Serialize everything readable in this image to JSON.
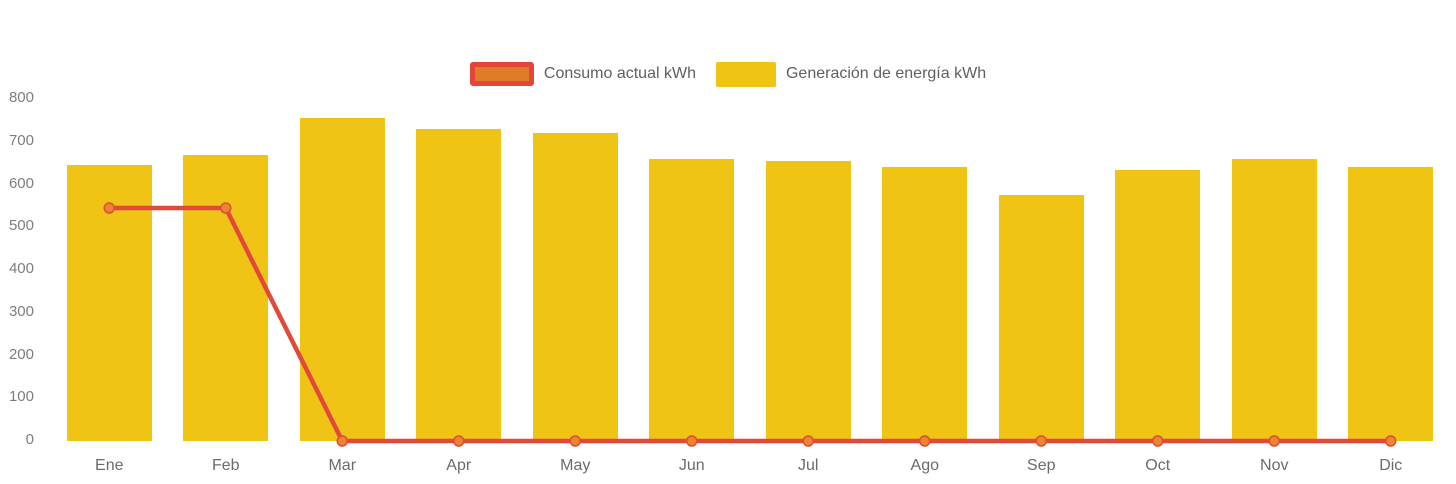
{
  "page": {
    "background": "#ffffff"
  },
  "legend": {
    "position": "top-center",
    "items": [
      {
        "name": "Consumo actual kWh",
        "swatch": "line-swatch",
        "fill": "#e07c28",
        "border": "#e24639"
      },
      {
        "name": "Generación de energía kWh",
        "swatch": "bar-swatch",
        "fill": "#f0c414"
      }
    ]
  },
  "chart_data": {
    "type": "bar+line",
    "title": "",
    "xlabel": "",
    "ylabel": "",
    "categories": [
      "Ene",
      "Feb",
      "Mar",
      "Apr",
      "May",
      "Jun",
      "Jul",
      "Ago",
      "Sep",
      "Oct",
      "Nov",
      "Dic"
    ],
    "series": [
      {
        "name": "Consumo actual kWh",
        "type": "line",
        "line_color": "#e2493b",
        "marker_color": "#e8872e",
        "values": [
          545,
          545,
          0,
          0,
          0,
          0,
          0,
          0,
          0,
          0,
          0,
          0
        ]
      },
      {
        "name": "Generación de energía kWh",
        "type": "bar",
        "color": "#f0c414",
        "values": [
          645,
          670,
          755,
          730,
          720,
          660,
          655,
          640,
          575,
          635,
          660,
          640
        ]
      }
    ],
    "ylim": [
      0,
      800
    ],
    "ytick_step": 100,
    "yticks": [
      0,
      100,
      200,
      300,
      400,
      500,
      600,
      700,
      800
    ],
    "grid": false,
    "axis_lines": false,
    "legend_position": "top-center",
    "y_label_color": "#7d7d7d",
    "x_label_color": "#6b6b6b"
  }
}
